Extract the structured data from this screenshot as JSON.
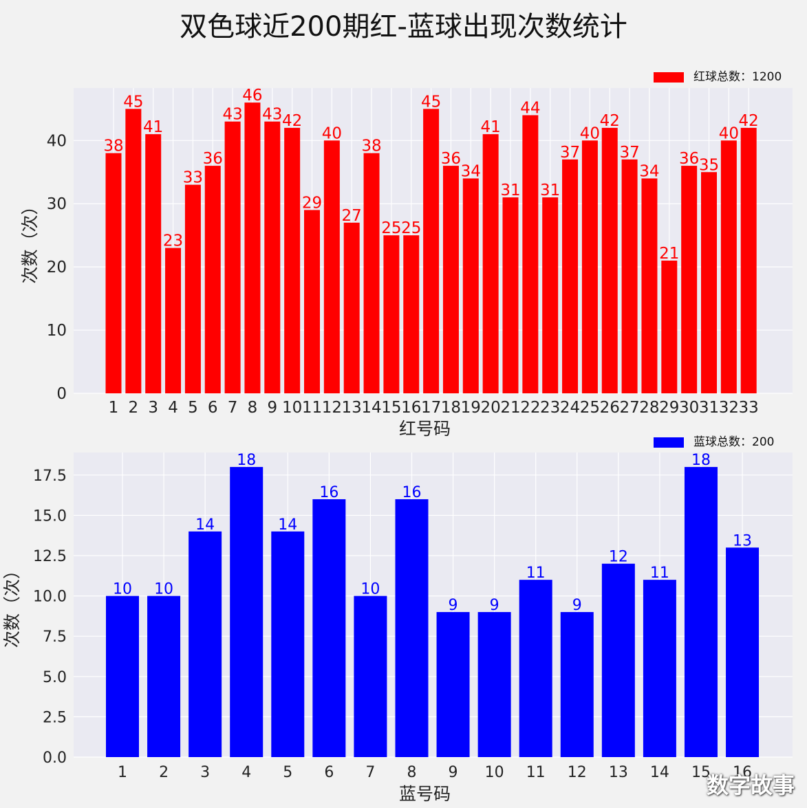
{
  "title": "双色球近200期红-蓝球出现次数统计",
  "watermark": "数字故事",
  "chart_data": [
    {
      "type": "bar",
      "categories": [
        "1",
        "2",
        "3",
        "4",
        "5",
        "6",
        "7",
        "8",
        "9",
        "10",
        "11",
        "12",
        "13",
        "14",
        "15",
        "16",
        "17",
        "18",
        "19",
        "20",
        "21",
        "22",
        "23",
        "24",
        "25",
        "26",
        "27",
        "28",
        "29",
        "30",
        "31",
        "32",
        "33"
      ],
      "values": [
        38,
        45,
        41,
        23,
        33,
        36,
        43,
        46,
        43,
        42,
        29,
        40,
        27,
        38,
        25,
        25,
        45,
        36,
        34,
        41,
        31,
        44,
        31,
        37,
        40,
        42,
        37,
        34,
        21,
        36,
        35,
        40,
        42
      ],
      "xlabel": "红号码",
      "ylabel": "次数（次）",
      "legend": "红球总数：1200",
      "legend_position": "top-right",
      "yticks": [
        0,
        10,
        20,
        30,
        40
      ],
      "ytick_labels": [
        "0",
        "10",
        "20",
        "30",
        "40"
      ],
      "ylim": [
        0,
        48.3
      ],
      "color": "#ff0000",
      "grid": true
    },
    {
      "type": "bar",
      "categories": [
        "1",
        "2",
        "3",
        "4",
        "5",
        "6",
        "7",
        "8",
        "9",
        "10",
        "11",
        "12",
        "13",
        "14",
        "15",
        "16"
      ],
      "values": [
        10,
        10,
        14,
        18,
        14,
        16,
        10,
        16,
        9,
        9,
        11,
        9,
        12,
        11,
        18,
        13
      ],
      "xlabel": "蓝号码",
      "ylabel": "次数（次）",
      "legend": "蓝球总数：200",
      "legend_position": "top-right",
      "yticks": [
        0,
        2.5,
        5,
        7.5,
        10,
        12.5,
        15,
        17.5
      ],
      "ytick_labels": [
        "0.0",
        "2.5",
        "5.0",
        "7.5",
        "10.0",
        "12.5",
        "15.0",
        "17.5"
      ],
      "ylim": [
        0,
        18.9
      ],
      "color": "#0000ff",
      "grid": true
    }
  ]
}
